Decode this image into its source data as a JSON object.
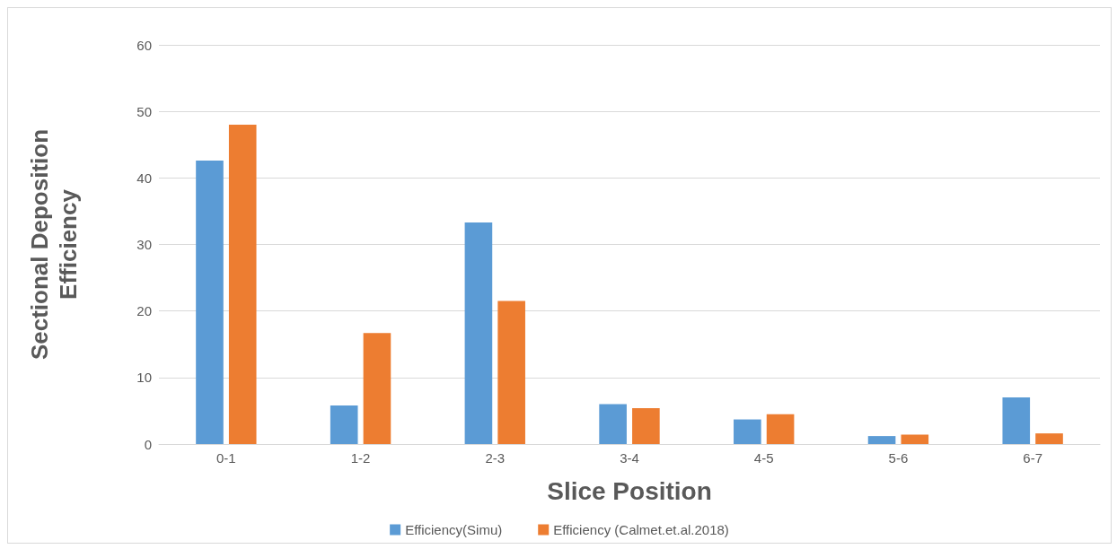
{
  "chart_data": {
    "type": "bar",
    "xlabel": "Slice Position",
    "ylabel": "Sectional Deposition\nEfficiency",
    "categories": [
      "0-1",
      "1-2",
      "2-3",
      "3-4",
      "4-5",
      "5-6",
      "6-7"
    ],
    "series": [
      {
        "name": "Efficiency(Simu)",
        "color": "#5b9bd5",
        "values": [
          42.6,
          5.8,
          33.3,
          6.0,
          3.7,
          1.2,
          7.0
        ]
      },
      {
        "name": "Efficiency (Calmet.et.al.2018)",
        "color": "#ed7d31",
        "values": [
          48.0,
          16.7,
          21.5,
          5.4,
          4.5,
          1.4,
          1.6
        ]
      }
    ],
    "ylim": [
      0,
      60
    ],
    "yticks": [
      0,
      10,
      20,
      30,
      40,
      50,
      60
    ],
    "grid": "y",
    "legend": "bottom"
  }
}
